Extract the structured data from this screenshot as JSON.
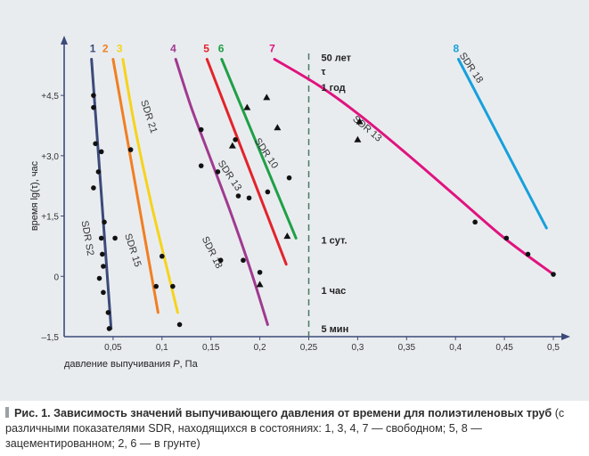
{
  "chart_data": {
    "type": "line",
    "ylabel": "время lg(τ), час",
    "xlabel_main": "давление выпучивания ",
    "xlabel_italic": "P",
    "xlabel_unit": ", Па",
    "xlim": [
      0,
      0.5
    ],
    "ylim": [
      -1.5,
      5.5
    ],
    "x_ticks": [
      {
        "value": 0.05,
        "label": "0,05"
      },
      {
        "value": 0.1,
        "label": "0,1"
      },
      {
        "value": 0.15,
        "label": "0,15"
      },
      {
        "value": 0.2,
        "label": "0,2"
      },
      {
        "value": 0.25,
        "label": "0,25"
      },
      {
        "value": 0.3,
        "label": "0,3"
      },
      {
        "value": 0.35,
        "label": "0,35"
      },
      {
        "value": 0.4,
        "label": "0,4"
      },
      {
        "value": 0.45,
        "label": "0,45"
      },
      {
        "value": 0.5,
        "label": "0,5"
      }
    ],
    "y_ticks": [
      {
        "value": 4.5,
        "label": "+4,5"
      },
      {
        "value": 3.0,
        "label": "+3,0"
      },
      {
        "value": 1.5,
        "label": "+1,5"
      },
      {
        "value": 0,
        "label": "0"
      },
      {
        "value": -1.5,
        "label": "–1,5"
      }
    ],
    "origin_label": "0",
    "series": [
      {
        "name": "1",
        "sdr": "SDR S2",
        "color": "#3b4a7a",
        "x": [
          0.028,
          0.048
        ],
        "y": [
          5.4,
          -1.3
        ]
      },
      {
        "name": "2",
        "sdr": "SDR 15",
        "color": "#f07f22",
        "x": [
          0.05,
          0.096
        ],
        "y": [
          5.4,
          -0.9
        ]
      },
      {
        "name": "3",
        "sdr": "SDR 21",
        "color": "#f6d31b",
        "x": [
          0.06,
          0.07,
          0.08,
          0.09,
          0.1,
          0.11,
          0.116
        ],
        "y": [
          5.4,
          4.0,
          2.8,
          1.7,
          0.7,
          -0.3,
          -0.9
        ]
      },
      {
        "name": "4",
        "sdr": "SDR 18",
        "color": "#a03a8f",
        "x": [
          0.114,
          0.13,
          0.15,
          0.17,
          0.19,
          0.208
        ],
        "y": [
          5.4,
          4.2,
          2.9,
          1.6,
          0.2,
          -1.2
        ]
      },
      {
        "name": "5",
        "sdr": "SDR 13",
        "color": "#e3232b",
        "x": [
          0.146,
          0.227
        ],
        "y": [
          5.4,
          0.3
        ]
      },
      {
        "name": "6",
        "sdr": "SDR 10",
        "color": "#1fa046",
        "x": [
          0.161,
          0.237
        ],
        "y": [
          5.4,
          0.95
        ]
      },
      {
        "name": "7",
        "sdr": "SDR 13",
        "color": "#e0137f",
        "x": [
          0.215,
          0.26,
          0.3,
          0.35,
          0.4,
          0.45,
          0.5
        ],
        "y": [
          5.4,
          4.75,
          4.05,
          3.05,
          2.0,
          0.95,
          0.05
        ]
      },
      {
        "name": "8",
        "sdr": "SDR 18",
        "color": "#16a0dc",
        "x": [
          0.403,
          0.493
        ],
        "y": [
          5.4,
          1.2
        ]
      }
    ],
    "points_circle": [
      [
        0.03,
        4.5
      ],
      [
        0.03,
        4.2
      ],
      [
        0.032,
        3.3
      ],
      [
        0.03,
        2.2
      ],
      [
        0.035,
        2.6
      ],
      [
        0.038,
        3.1
      ],
      [
        0.041,
        1.35
      ],
      [
        0.038,
        0.95
      ],
      [
        0.039,
        0.55
      ],
      [
        0.04,
        0.25
      ],
      [
        0.036,
        -0.05
      ],
      [
        0.04,
        -0.4
      ],
      [
        0.045,
        -0.9
      ],
      [
        0.046,
        -1.3
      ],
      [
        0.052,
        0.95
      ],
      [
        0.068,
        3.15
      ],
      [
        0.1,
        0.5
      ],
      [
        0.094,
        -0.25
      ],
      [
        0.111,
        -0.25
      ],
      [
        0.118,
        -1.2
      ],
      [
        0.14,
        3.65
      ],
      [
        0.14,
        2.75
      ],
      [
        0.157,
        2.6
      ],
      [
        0.16,
        0.4
      ],
      [
        0.175,
        3.4
      ],
      [
        0.178,
        2.0
      ],
      [
        0.189,
        1.95
      ],
      [
        0.183,
        0.4
      ],
      [
        0.2,
        0.1
      ],
      [
        0.208,
        2.1
      ],
      [
        0.23,
        2.45
      ],
      [
        0.42,
        1.35
      ],
      [
        0.452,
        0.95
      ],
      [
        0.474,
        0.55
      ],
      [
        0.5,
        0.05
      ]
    ],
    "points_triangle": [
      [
        0.172,
        3.25
      ],
      [
        0.187,
        4.2
      ],
      [
        0.207,
        4.45
      ],
      [
        0.218,
        3.7
      ],
      [
        0.2,
        -0.2
      ],
      [
        0.228,
        1.0
      ],
      [
        0.302,
        3.85
      ],
      [
        0.3,
        3.4
      ]
    ],
    "time_markers": [
      {
        "label": "50 лет",
        "value": 5.45
      },
      {
        "label": "τ",
        "value": 5.1
      },
      {
        "label": "1 год",
        "value": 4.7
      },
      {
        "label": "1 сут.",
        "value": 0.9
      },
      {
        "label": "1 час",
        "value": -0.35
      },
      {
        "label": "5 мин",
        "value": -1.3
      }
    ],
    "reference_line_x": 0.25,
    "grid": false,
    "legend": "none"
  },
  "caption": {
    "lead": "Рис. 1. Зависимость значений выпучивающего давления от времени для полиэтиленовых труб",
    "text": " (с различными показателями SDR, находящихся в состояниях: 1, 3, 4, 7 — свободном; 5, 8 — зацементированном; 2, 6 — в грунте)"
  }
}
